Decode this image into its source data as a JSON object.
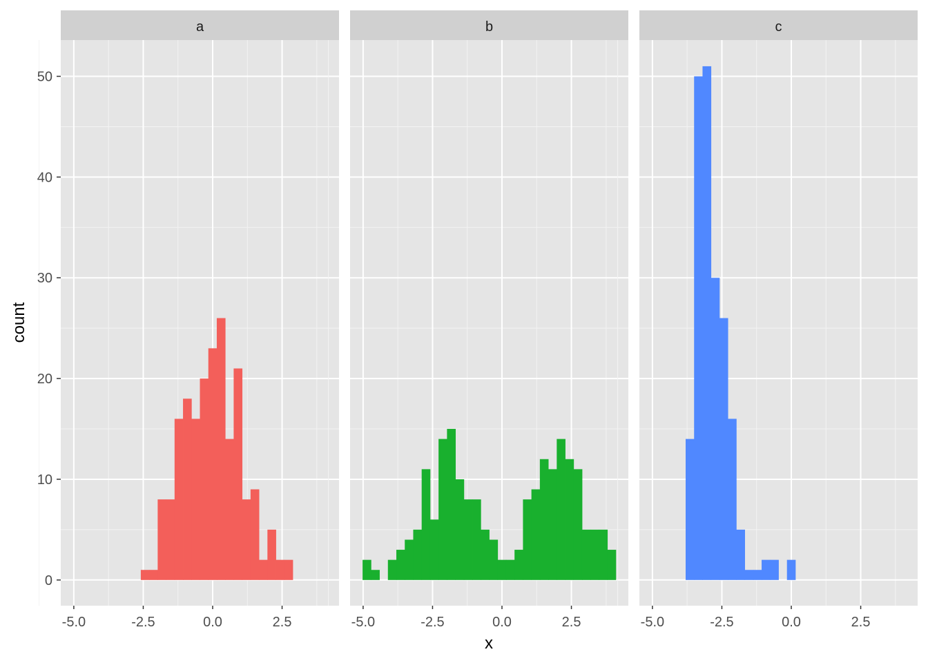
{
  "chart_data": {
    "type": "histogram",
    "facet_variable_levels": [
      "a",
      "b",
      "c"
    ],
    "xlabel": "x",
    "ylabel": "count",
    "xlim": [
      -5.47,
      4.55
    ],
    "ylim": [
      -2.55,
      53.6
    ],
    "x_ticks": [
      "-5.0",
      "-2.5",
      "0.0",
      "2.5"
    ],
    "x_tick_values": [
      -5,
      -2.5,
      0,
      2.5
    ],
    "y_ticks": [
      "0",
      "10",
      "20",
      "30",
      "40",
      "50"
    ],
    "y_tick_values": [
      0,
      10,
      20,
      30,
      40,
      50
    ],
    "grid": true,
    "legend": "none",
    "binwidth": 0.304,
    "panels": [
      {
        "label": "a",
        "color": "#F35F5A",
        "bin_start": -2.588,
        "counts": [
          1,
          1,
          8,
          8,
          16,
          18,
          16,
          20,
          23,
          26,
          14,
          21,
          8,
          9,
          2,
          5,
          2,
          2
        ]
      },
      {
        "label": "b",
        "color": "#19B02E",
        "bin_start": -5.02,
        "counts": [
          2,
          1,
          0,
          2,
          3,
          4,
          5,
          11,
          6,
          14,
          15,
          10,
          8,
          8,
          5,
          4,
          2,
          2,
          3,
          8,
          9,
          12,
          11,
          14,
          12,
          11,
          5,
          5,
          5,
          3
        ]
      },
      {
        "label": "c",
        "color": "#5088FF",
        "bin_start": -3.804,
        "counts": [
          14,
          50,
          51,
          30,
          26,
          16,
          5,
          1,
          1,
          2,
          2,
          0,
          2
        ]
      }
    ]
  }
}
